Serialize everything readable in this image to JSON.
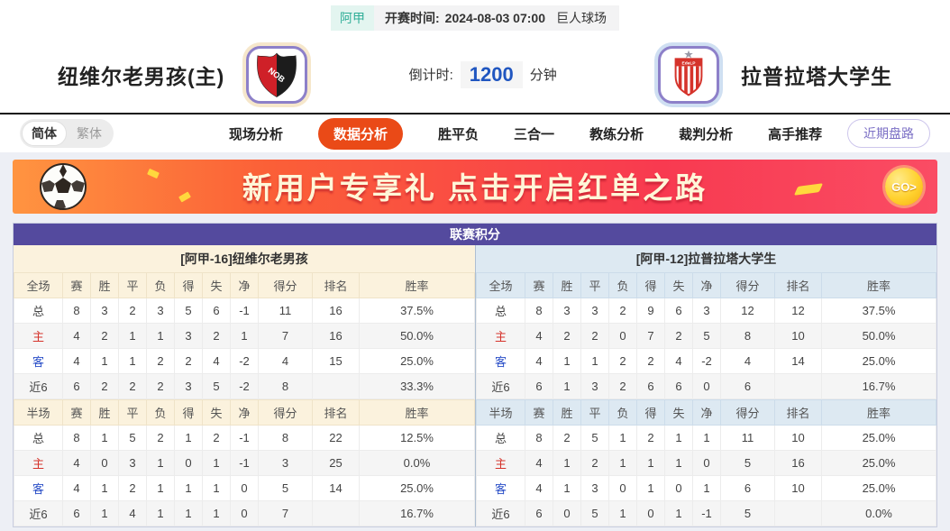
{
  "top_bar": {
    "league": "阿甲",
    "kickoff_label": "开赛时间:",
    "kickoff_time": "2024-08-03 07:00",
    "venue": "巨人球场"
  },
  "header": {
    "home_team": "纽维尔老男孩(主)",
    "away_team": "拉普拉塔大学生",
    "home_logo_text": "NOB",
    "away_logo_text": "EdeLP",
    "countdown_label": "倒计时:",
    "countdown_value": "1200",
    "countdown_unit": "分钟"
  },
  "nav": {
    "lang": [
      {
        "label": "简体",
        "active": true
      },
      {
        "label": "繁体",
        "active": false
      }
    ],
    "tabs": [
      {
        "label": "现场分析",
        "active": false
      },
      {
        "label": "数据分析",
        "active": true
      },
      {
        "label": "胜平负",
        "active": false
      },
      {
        "label": "三合一",
        "active": false
      },
      {
        "label": "教练分析",
        "active": false
      },
      {
        "label": "裁判分析",
        "active": false
      },
      {
        "label": "高手推荐",
        "active": false
      }
    ],
    "recent_button": "近期盘路"
  },
  "banner": {
    "text": "新用户专享礼  点击开启红单之路",
    "go_label": "GO>"
  },
  "league_table": {
    "title": "联赛积分",
    "columns_full": [
      "全场",
      "赛",
      "胜",
      "平",
      "负",
      "得",
      "失",
      "净",
      "得分",
      "排名",
      "胜率"
    ],
    "columns_half": [
      "半场",
      "赛",
      "胜",
      "平",
      "负",
      "得",
      "失",
      "净",
      "得分",
      "排名",
      "胜率"
    ],
    "teams": [
      {
        "header": "[阿甲-16]纽维尔老男孩",
        "side": "home",
        "full_rows": [
          {
            "label": "总",
            "cells": [
              "8",
              "3",
              "2",
              "3",
              "5",
              "6",
              "-1",
              "11",
              "16",
              "37.5%"
            ]
          },
          {
            "label": "主",
            "cells": [
              "4",
              "2",
              "1",
              "1",
              "3",
              "2",
              "1",
              "7",
              "16",
              "50.0%"
            ]
          },
          {
            "label": "客",
            "cells": [
              "4",
              "1",
              "1",
              "2",
              "2",
              "4",
              "-2",
              "4",
              "15",
              "25.0%"
            ]
          },
          {
            "label": "近6",
            "cells": [
              "6",
              "2",
              "2",
              "2",
              "3",
              "5",
              "-2",
              "8",
              "",
              "33.3%"
            ]
          }
        ],
        "half_rows": [
          {
            "label": "总",
            "cells": [
              "8",
              "1",
              "5",
              "2",
              "1",
              "2",
              "-1",
              "8",
              "22",
              "12.5%"
            ]
          },
          {
            "label": "主",
            "cells": [
              "4",
              "0",
              "3",
              "1",
              "0",
              "1",
              "-1",
              "3",
              "25",
              "0.0%"
            ]
          },
          {
            "label": "客",
            "cells": [
              "4",
              "1",
              "2",
              "1",
              "1",
              "1",
              "0",
              "5",
              "14",
              "25.0%"
            ]
          },
          {
            "label": "近6",
            "cells": [
              "6",
              "1",
              "4",
              "1",
              "1",
              "1",
              "0",
              "7",
              "",
              "16.7%"
            ]
          }
        ]
      },
      {
        "header": "[阿甲-12]拉普拉塔大学生",
        "side": "away",
        "full_rows": [
          {
            "label": "总",
            "cells": [
              "8",
              "3",
              "3",
              "2",
              "9",
              "6",
              "3",
              "12",
              "12",
              "37.5%"
            ]
          },
          {
            "label": "主",
            "cells": [
              "4",
              "2",
              "2",
              "0",
              "7",
              "2",
              "5",
              "8",
              "10",
              "50.0%"
            ]
          },
          {
            "label": "客",
            "cells": [
              "4",
              "1",
              "1",
              "2",
              "2",
              "4",
              "-2",
              "4",
              "14",
              "25.0%"
            ]
          },
          {
            "label": "近6",
            "cells": [
              "6",
              "1",
              "3",
              "2",
              "6",
              "6",
              "0",
              "6",
              "",
              "16.7%"
            ]
          }
        ],
        "half_rows": [
          {
            "label": "总",
            "cells": [
              "8",
              "2",
              "5",
              "1",
              "2",
              "1",
              "1",
              "11",
              "10",
              "25.0%"
            ]
          },
          {
            "label": "主",
            "cells": [
              "4",
              "1",
              "2",
              "1",
              "1",
              "1",
              "0",
              "5",
              "16",
              "25.0%"
            ]
          },
          {
            "label": "客",
            "cells": [
              "4",
              "1",
              "3",
              "0",
              "1",
              "0",
              "1",
              "6",
              "10",
              "25.0%"
            ]
          },
          {
            "label": "近6",
            "cells": [
              "6",
              "0",
              "5",
              "1",
              "0",
              "1",
              "-1",
              "5",
              "",
              "0.0%"
            ]
          }
        ]
      }
    ]
  },
  "colors": {
    "accent_orange": "#ea4a17",
    "title_purple": "#544a9e",
    "league_teal": "#2fae97",
    "home_tint": "#fbf2dd",
    "away_tint": "#dde9f2",
    "countdown_blue": "#2056c0",
    "row_label_red": "#d5332b",
    "row_label_blue": "#2b50c8"
  }
}
